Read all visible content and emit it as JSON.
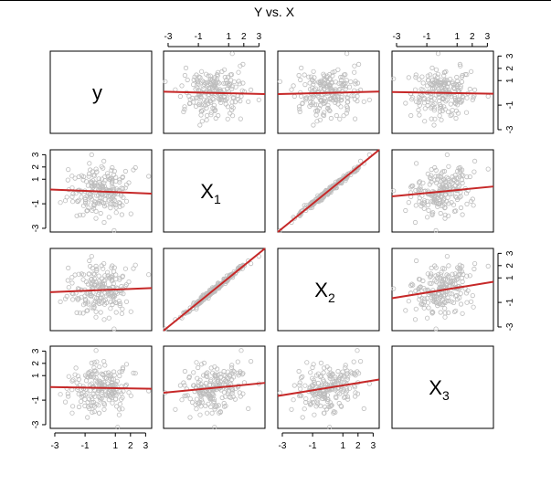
{
  "chart_data": {
    "type": "scatter-matrix",
    "title": "Y vs. X",
    "variables": [
      {
        "name": "y",
        "sub": ""
      },
      {
        "name": "X",
        "sub": "1"
      },
      {
        "name": "X",
        "sub": "2"
      },
      {
        "name": "X",
        "sub": "3"
      }
    ],
    "tick_values": [
      -3,
      -1,
      1,
      2,
      3
    ],
    "tick_labels": [
      "-3",
      "-1",
      "1",
      "2",
      "3"
    ],
    "axis_range": [
      -3.3,
      3.4
    ],
    "point_count": 200,
    "fits": [
      {
        "row": 0,
        "col": 1,
        "intercept": 0.0,
        "slope": -0.03
      },
      {
        "row": 0,
        "col": 2,
        "intercept": 0.0,
        "slope": 0.03
      },
      {
        "row": 0,
        "col": 3,
        "intercept": 0.0,
        "slope": -0.02
      },
      {
        "row": 1,
        "col": 0,
        "intercept": 0.0,
        "slope": -0.05
      },
      {
        "row": 1,
        "col": 2,
        "intercept": 0.0,
        "slope": 1.0
      },
      {
        "row": 1,
        "col": 3,
        "intercept": 0.0,
        "slope": 0.12
      },
      {
        "row": 2,
        "col": 0,
        "intercept": 0.0,
        "slope": 0.05
      },
      {
        "row": 2,
        "col": 1,
        "intercept": 0.0,
        "slope": 1.0
      },
      {
        "row": 2,
        "col": 3,
        "intercept": 0.0,
        "slope": 0.2
      },
      {
        "row": 3,
        "col": 0,
        "intercept": 0.0,
        "slope": -0.02
      },
      {
        "row": 3,
        "col": 1,
        "intercept": 0.0,
        "slope": 0.12
      },
      {
        "row": 3,
        "col": 2,
        "intercept": 0.0,
        "slope": 0.2
      }
    ],
    "point_color": "#bdbdbd",
    "fit_color": "#c62828",
    "grid": false
  }
}
